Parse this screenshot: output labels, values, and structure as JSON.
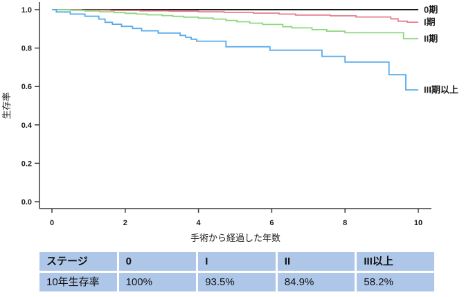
{
  "chart_data": {
    "type": "line",
    "subtype": "kaplan-meier-step",
    "xlabel": "手術から経過した年数",
    "ylabel": "生存率",
    "xlim": [
      0,
      10
    ],
    "ylim": [
      0.0,
      1.0
    ],
    "xticks": [
      "0",
      "2",
      "4",
      "6",
      "8",
      "10"
    ],
    "yticks": [
      "0.0",
      "0.2",
      "0.4",
      "0.6",
      "0.8",
      "1.0"
    ],
    "grid": false,
    "legend_position": "right-of-curve-ends",
    "series": [
      {
        "id": "stage-0",
        "name": "0期",
        "color": "#1a1a1a",
        "points": [
          [
            0,
            1.0
          ],
          [
            10,
            1.0
          ]
        ]
      },
      {
        "id": "stage-1",
        "name": "I期",
        "color": "#e57c8a",
        "points": [
          [
            0,
            1.0
          ],
          [
            0.8,
            0.998
          ],
          [
            1.6,
            0.996
          ],
          [
            2.4,
            0.994
          ],
          [
            3.2,
            0.992
          ],
          [
            4,
            0.989
          ],
          [
            4.7,
            0.986
          ],
          [
            5.5,
            0.982
          ],
          [
            6.2,
            0.977
          ],
          [
            6.65,
            0.972
          ],
          [
            7.6,
            0.968
          ],
          [
            8.3,
            0.962
          ],
          [
            9.25,
            0.952
          ],
          [
            9.45,
            0.94
          ],
          [
            9.7,
            0.935
          ],
          [
            10,
            0.935
          ]
        ]
      },
      {
        "id": "stage-2",
        "name": "II期",
        "color": "#8cd87d",
        "points": [
          [
            0,
            1.0
          ],
          [
            0.5,
            0.997
          ],
          [
            0.9,
            0.993
          ],
          [
            1.3,
            0.989
          ],
          [
            1.7,
            0.985
          ],
          [
            2,
            0.981
          ],
          [
            2.3,
            0.977
          ],
          [
            2.6,
            0.973
          ],
          [
            3,
            0.969
          ],
          [
            3.3,
            0.965
          ],
          [
            3.6,
            0.961
          ],
          [
            4,
            0.956
          ],
          [
            4.4,
            0.951
          ],
          [
            4.75,
            0.944
          ],
          [
            5.05,
            0.937
          ],
          [
            5.4,
            0.93
          ],
          [
            5.75,
            0.923
          ],
          [
            6.3,
            0.911
          ],
          [
            6.55,
            0.905
          ],
          [
            7.1,
            0.896
          ],
          [
            7.5,
            0.888
          ],
          [
            8,
            0.88
          ],
          [
            9.6,
            0.849
          ],
          [
            10,
            0.849
          ]
        ]
      },
      {
        "id": "stage-3plus",
        "name": "III期以上",
        "color": "#55aaec",
        "points": [
          [
            0,
            1.0
          ],
          [
            0.12,
            0.988
          ],
          [
            0.5,
            0.977
          ],
          [
            0.9,
            0.966
          ],
          [
            1.28,
            0.951
          ],
          [
            1.45,
            0.934
          ],
          [
            1.65,
            0.924
          ],
          [
            1.9,
            0.913
          ],
          [
            2.2,
            0.902
          ],
          [
            2.45,
            0.89
          ],
          [
            2.9,
            0.878
          ],
          [
            3.5,
            0.866
          ],
          [
            3.65,
            0.856
          ],
          [
            3.8,
            0.846
          ],
          [
            3.95,
            0.836
          ],
          [
            4.75,
            0.807
          ],
          [
            5.95,
            0.789
          ],
          [
            7.37,
            0.757
          ],
          [
            8,
            0.727
          ],
          [
            9.2,
            0.661
          ],
          [
            9.66,
            0.582
          ],
          [
            10,
            0.582
          ]
        ]
      }
    ]
  },
  "table": {
    "cell_bg": "#aec6e8",
    "headers": [
      "ステージ",
      "0",
      "I",
      "II",
      "III以上"
    ],
    "rows": [
      [
        "10年生存率",
        "100%",
        "93.5%",
        "84.9%",
        "58.2%"
      ]
    ]
  }
}
